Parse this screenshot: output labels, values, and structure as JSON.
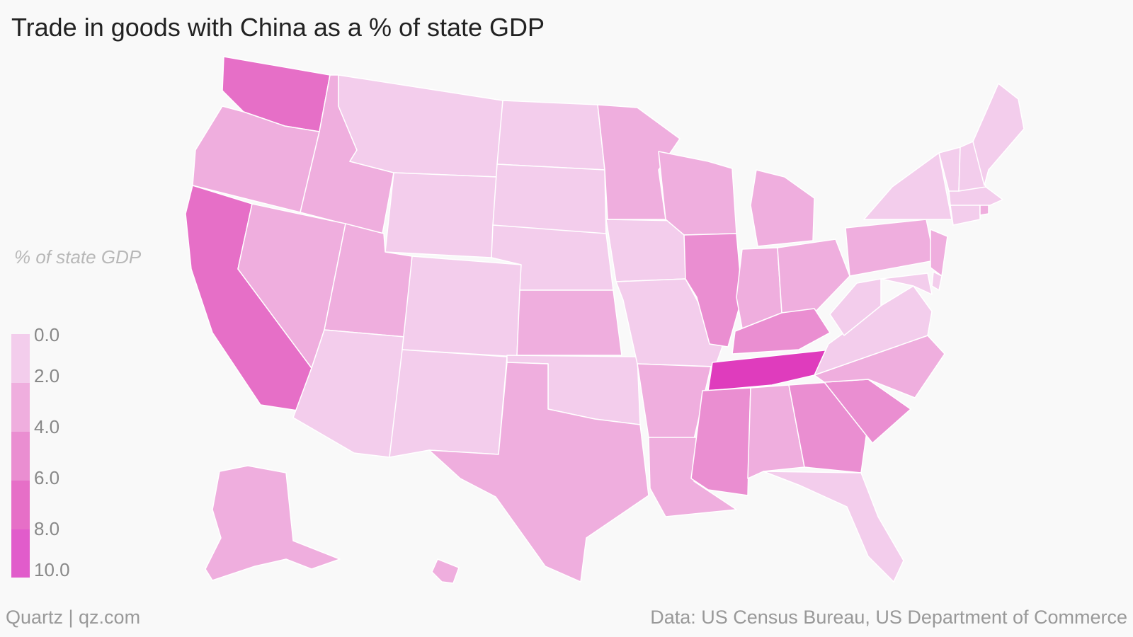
{
  "title": "Trade in goods with China as a % of state GDP",
  "legend": {
    "title": "% of state GDP",
    "ticks": [
      "0.0",
      "2.0",
      "4.0",
      "6.0",
      "8.0",
      "10.0"
    ],
    "colors": [
      "#f3cdec",
      "#efaede",
      "#ea8ed1",
      "#e66fc7",
      "#e15ccb",
      "#df3cbd"
    ]
  },
  "credit": "Quartz | qz.com",
  "source": "Data: US Census Bureau, US Department of Commerce",
  "map_data": {
    "type": "choropleth",
    "states": [
      {
        "name": "Washington",
        "bin": 3
      },
      {
        "name": "Oregon",
        "bin": 1
      },
      {
        "name": "California",
        "bin": 3
      },
      {
        "name": "Idaho",
        "bin": 1
      },
      {
        "name": "Nevada",
        "bin": 1
      },
      {
        "name": "Montana",
        "bin": 0
      },
      {
        "name": "Wyoming",
        "bin": 0
      },
      {
        "name": "Utah",
        "bin": 1
      },
      {
        "name": "Arizona",
        "bin": 0
      },
      {
        "name": "Colorado",
        "bin": 0
      },
      {
        "name": "New Mexico",
        "bin": 0
      },
      {
        "name": "North Dakota",
        "bin": 0
      },
      {
        "name": "South Dakota",
        "bin": 0
      },
      {
        "name": "Nebraska",
        "bin": 0
      },
      {
        "name": "Kansas",
        "bin": 1
      },
      {
        "name": "Oklahoma",
        "bin": 0
      },
      {
        "name": "Texas",
        "bin": 1
      },
      {
        "name": "Minnesota",
        "bin": 1
      },
      {
        "name": "Iowa",
        "bin": 0
      },
      {
        "name": "Missouri",
        "bin": 0
      },
      {
        "name": "Arkansas",
        "bin": 1
      },
      {
        "name": "Louisiana",
        "bin": 1
      },
      {
        "name": "Wisconsin",
        "bin": 1
      },
      {
        "name": "Illinois",
        "bin": 2
      },
      {
        "name": "Michigan",
        "bin": 1
      },
      {
        "name": "Indiana",
        "bin": 1
      },
      {
        "name": "Ohio",
        "bin": 1
      },
      {
        "name": "Kentucky",
        "bin": 2
      },
      {
        "name": "Tennessee",
        "bin": 5
      },
      {
        "name": "Mississippi",
        "bin": 2
      },
      {
        "name": "Alabama",
        "bin": 1
      },
      {
        "name": "Georgia",
        "bin": 2
      },
      {
        "name": "Florida",
        "bin": 0
      },
      {
        "name": "South Carolina",
        "bin": 2
      },
      {
        "name": "North Carolina",
        "bin": 1
      },
      {
        "name": "Virginia",
        "bin": 0
      },
      {
        "name": "West Virginia",
        "bin": 0
      },
      {
        "name": "Pennsylvania",
        "bin": 1
      },
      {
        "name": "New York",
        "bin": 0
      },
      {
        "name": "New Jersey",
        "bin": 1
      },
      {
        "name": "Delaware",
        "bin": 0
      },
      {
        "name": "Maryland",
        "bin": 0
      },
      {
        "name": "Connecticut",
        "bin": 0
      },
      {
        "name": "Rhode Island",
        "bin": 1
      },
      {
        "name": "Massachusetts",
        "bin": 0
      },
      {
        "name": "Vermont",
        "bin": 0
      },
      {
        "name": "New Hampshire",
        "bin": 0
      },
      {
        "name": "Maine",
        "bin": 0
      },
      {
        "name": "Alaska",
        "bin": 1
      },
      {
        "name": "Hawaii",
        "bin": 1
      }
    ]
  }
}
